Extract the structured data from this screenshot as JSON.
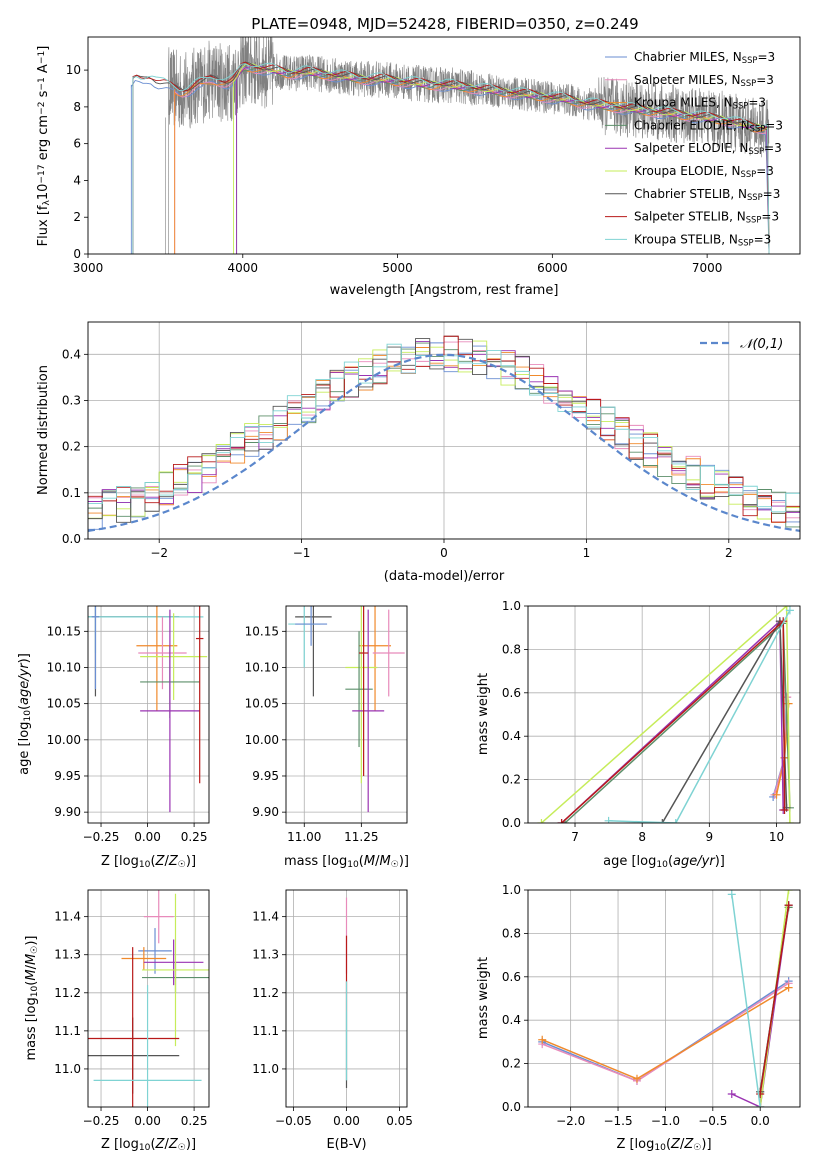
{
  "colors": {
    "series": [
      "#6a8ed2",
      "#e88bbb",
      "#f08a2c",
      "#5c8f6a",
      "#9a33b2",
      "#c6ec5a",
      "#555555",
      "#b81a1a",
      "#7fd3d3"
    ],
    "normal": "#5b87cc",
    "grid": "#b0b0b0",
    "spectrum": "#808080"
  },
  "series_names": [
    "Chabrier MILES, N_SSP=3",
    "Salpeter MILES, N_SSP=3",
    "Kroupa MILES, N_SSP=3",
    "Chabrier ELODIE, N_SSP=3",
    "Salpeter ELODIE, N_SSP=3",
    "Kroupa ELODIE, N_SSP=3",
    "Chabrier STELIB, N_SSP=3",
    "Salpeter STELIB, N_SSP=3",
    "Kroupa STELIB, N_SSP=3"
  ],
  "legend_rich": [
    {
      "pre": "Chabrier MILES, N",
      "sub": "SSP",
      "post": "=3"
    },
    {
      "pre": "Salpeter MILES, N",
      "sub": "SSP",
      "post": "=3"
    },
    {
      "pre": "Kroupa MILES, N",
      "sub": "SSP",
      "post": "=3"
    },
    {
      "pre": "Chabrier ELODIE, N",
      "sub": "SSP",
      "post": "=3"
    },
    {
      "pre": "Salpeter ELODIE, N",
      "sub": "SSP",
      "post": "=3"
    },
    {
      "pre": "Kroupa ELODIE, N",
      "sub": "SSP",
      "post": "=3"
    },
    {
      "pre": "Chabrier STELIB, N",
      "sub": "SSP",
      "post": "=3"
    },
    {
      "pre": "Salpeter STELIB, N",
      "sub": "SSP",
      "post": "=3"
    },
    {
      "pre": "Kroupa STELIB, N",
      "sub": "SSP",
      "post": "=3"
    }
  ],
  "chart_data": [
    {
      "id": "spectrum",
      "type": "line",
      "title": "PLATE=0948, MJD=52428, FIBERID=0350, z=0.249",
      "xlabel": "wavelength [Angstrom, rest frame]",
      "ylabel": "Flux [f_λ 10^-17 erg cm^-2 s^-1 A^-1]",
      "xlim": [
        3000,
        7600
      ],
      "ylim": [
        0,
        11.8
      ],
      "xticks": [
        3000,
        4000,
        5000,
        6000,
        7000
      ],
      "yticks": [
        0,
        2,
        4,
        6,
        8,
        10
      ],
      "data_range": [
        3500,
        7400
      ],
      "model_starts": [
        3280,
        3560,
        3560,
        3960,
        3960,
        3940,
        3290,
        3290,
        3290
      ],
      "model_points": {
        "x": [
          3280,
          3300,
          3350,
          3400,
          3450,
          3500,
          3550,
          3600,
          3650,
          3700,
          3750,
          3800,
          3850,
          3900,
          3950,
          4000,
          4100,
          4200,
          4300,
          4400,
          4500,
          4600,
          4700,
          4800,
          4900,
          5000,
          5100,
          5200,
          5300,
          5400,
          5500,
          5600,
          5700,
          5800,
          5900,
          6000,
          6100,
          6200,
          6300,
          6400,
          6500,
          6600,
          6700,
          6800,
          6900,
          7000,
          7100,
          7200,
          7300,
          7400
        ],
        "y": [
          9.2,
          9.5,
          9.4,
          9.6,
          9.3,
          9.2,
          9.0,
          8.8,
          8.9,
          9.2,
          9.3,
          9.5,
          9.4,
          9.3,
          9.5,
          10.2,
          10.1,
          10.0,
          9.8,
          9.9,
          9.8,
          9.7,
          9.6,
          9.5,
          9.5,
          9.4,
          9.3,
          9.2,
          9.2,
          9.1,
          9.0,
          8.9,
          8.8,
          8.7,
          8.6,
          8.5,
          8.4,
          8.2,
          8.1,
          8.0,
          7.9,
          7.8,
          7.7,
          7.6,
          7.5,
          7.4,
          7.3,
          7.1,
          6.9,
          6.8
        ]
      },
      "legend": "upper right"
    },
    {
      "id": "residuals",
      "type": "line",
      "xlabel": "(data-model)/error",
      "ylabel": "Normed distribution",
      "xlim": [
        -2.5,
        2.5
      ],
      "ylim": [
        0,
        0.47
      ],
      "xticks": [
        -2,
        -1,
        0,
        1,
        2
      ],
      "yticks": [
        0.0,
        0.1,
        0.2,
        0.3,
        0.4
      ],
      "normal_label": "𝒩(0,1)",
      "legend": "upper right"
    },
    {
      "id": "age_vs_Z",
      "type": "scatter",
      "xlabel": "Z [log₁₀(Z/Z☉)]",
      "ylabel": "age  [log₁₀(age/yr)]",
      "xlim": [
        -0.32,
        0.33
      ],
      "ylim": [
        9.885,
        10.185
      ],
      "xticks": [
        -0.25,
        0.0,
        0.25
      ],
      "xtick_labels": [
        "−0.25",
        "0.00",
        "0.25"
      ],
      "yticks": [
        9.9,
        9.95,
        10.0,
        10.05,
        10.1,
        10.15
      ],
      "points": [
        {
          "x": -0.28,
          "y": 10.17,
          "xerr": 0.45,
          "yerr": 0.11,
          "c": 6
        },
        {
          "x": -0.28,
          "y": 10.17,
          "xerr": 0.58,
          "yerr": 0.05,
          "c": 8
        },
        {
          "x": 0.05,
          "y": 10.13,
          "xerr": 0.11,
          "yerr": 0.09,
          "c": 2
        },
        {
          "x": 0.08,
          "y": 10.12,
          "xerr": 0.13,
          "yerr": 0.05,
          "c": 1
        },
        {
          "x": 0.14,
          "y": 10.115,
          "xerr": 0.18,
          "yerr": 0.06,
          "c": 5
        },
        {
          "x": 0.12,
          "y": 10.08,
          "xerr": 0.16,
          "yerr": 0.05,
          "c": 3
        },
        {
          "x": 0.12,
          "y": 10.04,
          "xerr": 0.16,
          "yerr": 0.14,
          "c": 4
        },
        {
          "x": 0.28,
          "y": 10.14,
          "xerr": 0.02,
          "yerr": 0.2,
          "c": 7
        },
        {
          "x": -0.28,
          "y": 10.17,
          "xerr": 0.02,
          "yerr": 0.1,
          "c": 0
        }
      ]
    },
    {
      "id": "age_vs_mass",
      "type": "scatter",
      "xlabel": "mass [log₁₀(M/M☉)]",
      "ylabel": "",
      "xlim": [
        10.92,
        11.45
      ],
      "ylim": [
        9.885,
        10.185
      ],
      "xticks": [
        11.0,
        11.25
      ],
      "xtick_labels": [
        "11.00",
        "11.25"
      ],
      "yticks": [
        9.9,
        9.95,
        10.0,
        10.05,
        10.1,
        10.15
      ],
      "points": [
        {
          "x": 11.04,
          "y": 10.17,
          "xerr": 0.08,
          "yerr": 0.11,
          "c": 6
        },
        {
          "x": 11.0,
          "y": 10.16,
          "xerr": 0.07,
          "yerr": 0.06,
          "c": 8
        },
        {
          "x": 11.31,
          "y": 10.13,
          "xerr": 0.07,
          "yerr": 0.09,
          "c": 2
        },
        {
          "x": 11.37,
          "y": 10.12,
          "xerr": 0.07,
          "yerr": 0.06,
          "c": 1
        },
        {
          "x": 11.25,
          "y": 10.1,
          "xerr": 0.07,
          "yerr": 0.16,
          "c": 5
        },
        {
          "x": 11.24,
          "y": 10.07,
          "xerr": 0.06,
          "yerr": 0.08,
          "c": 3
        },
        {
          "x": 11.28,
          "y": 10.04,
          "xerr": 0.07,
          "yerr": 0.14,
          "c": 4
        },
        {
          "x": 11.26,
          "y": 10.12,
          "xerr": 0.02,
          "yerr": 0.17,
          "c": 7
        },
        {
          "x": 11.03,
          "y": 10.16,
          "xerr": 0.07,
          "yerr": 0.03,
          "c": 0
        }
      ]
    },
    {
      "id": "weight_vs_age",
      "type": "line",
      "xlabel": "age  [log₁₀(age/yr)]",
      "ylabel": "mass weight",
      "xlim": [
        6.3,
        10.35
      ],
      "ylim": [
        0,
        1.0
      ],
      "xticks": [
        7,
        8,
        9,
        10
      ],
      "yticks": [
        0.0,
        0.2,
        0.4,
        0.6,
        0.8,
        1.0
      ],
      "series": [
        {
          "c": 0,
          "x": [
            9.95,
            10.12,
            10.15
          ],
          "y": [
            0.12,
            0.3,
            0.58
          ]
        },
        {
          "c": 1,
          "x": [
            9.97,
            10.12,
            10.16
          ],
          "y": [
            0.13,
            0.3,
            0.58
          ]
        },
        {
          "c": 2,
          "x": [
            10.0,
            10.12,
            10.18
          ],
          "y": [
            0.13,
            0.3,
            0.55
          ]
        },
        {
          "c": 3,
          "x": [
            6.85,
            10.1,
            10.2
          ],
          "y": [
            0.0,
            0.92,
            0.07
          ]
        },
        {
          "c": 4,
          "x": [
            6.8,
            10.05,
            10.1
          ],
          "y": [
            0.0,
            0.93,
            0.06
          ]
        },
        {
          "c": 5,
          "x": [
            6.5,
            10.15,
            10.2
          ],
          "y": [
            0.0,
            1.0,
            0.0
          ]
        },
        {
          "c": 6,
          "x": [
            8.3,
            10.05,
            10.15
          ],
          "y": [
            0.0,
            0.93,
            0.07
          ]
        },
        {
          "c": 7,
          "x": [
            6.8,
            10.1,
            10.12
          ],
          "y": [
            0.0,
            0.93,
            0.06
          ]
        },
        {
          "c": 8,
          "x": [
            7.5,
            8.5,
            10.2
          ],
          "y": [
            0.01,
            0.0,
            0.98
          ]
        }
      ]
    },
    {
      "id": "mass_vs_Z",
      "type": "scatter",
      "xlabel": "Z [log₁₀(Z/Z☉)]",
      "ylabel": "mass [log₁₀(M/M☉)]",
      "xlim": [
        -0.32,
        0.33
      ],
      "ylim": [
        10.9,
        11.47
      ],
      "xticks": [
        -0.25,
        0.0,
        0.25
      ],
      "xtick_labels": [
        "−0.25",
        "0.00",
        "0.25"
      ],
      "yticks": [
        11.0,
        11.1,
        11.2,
        11.3,
        11.4
      ],
      "points": [
        {
          "x": 0.04,
          "y": 11.31,
          "xerr": 0.09,
          "yerr": 0.06,
          "c": 0
        },
        {
          "x": 0.06,
          "y": 11.4,
          "xerr": 0.08,
          "yerr": 0.07,
          "c": 1
        },
        {
          "x": -0.02,
          "y": 11.29,
          "xerr": 0.12,
          "yerr": 0.03,
          "c": 2
        },
        {
          "x": 0.15,
          "y": 11.24,
          "xerr": 0.18,
          "yerr": 0.04,
          "c": 3
        },
        {
          "x": 0.14,
          "y": 11.28,
          "xerr": 0.16,
          "yerr": 0.06,
          "c": 4
        },
        {
          "x": 0.15,
          "y": 11.26,
          "xerr": 0.18,
          "yerr": 0.2,
          "c": 5
        },
        {
          "x": -0.08,
          "y": 11.035,
          "xerr": 0.25,
          "yerr": 0.1,
          "c": 6
        },
        {
          "x": -0.08,
          "y": 11.08,
          "xerr": 0.25,
          "yerr": 0.24,
          "c": 7
        },
        {
          "x": 0.0,
          "y": 10.97,
          "xerr": 0.29,
          "yerr": 0.25,
          "c": 8
        }
      ]
    },
    {
      "id": "mass_vs_ebv",
      "type": "scatter",
      "xlabel": "E(B-V)",
      "ylabel": "",
      "xlim": [
        -0.057,
        0.057
      ],
      "ylim": [
        10.9,
        11.47
      ],
      "xticks": [
        -0.05,
        0.0,
        0.05
      ],
      "xtick_labels": [
        "−0.05",
        "0.00",
        "0.05"
      ],
      "yticks": [
        11.0,
        11.1,
        11.2,
        11.3,
        11.4
      ],
      "points": [
        {
          "x": 0.0,
          "y": 11.35,
          "xerr": 0.0,
          "yerr": 0.1,
          "c": 1
        },
        {
          "x": 0.0,
          "y": 11.25,
          "xerr": 0.0,
          "yerr": 0.1,
          "c": 7
        },
        {
          "x": 0.0,
          "y": 11.05,
          "xerr": 0.0,
          "yerr": 0.1,
          "c": 6
        },
        {
          "x": 0.0,
          "y": 11.1,
          "xerr": 0.0,
          "yerr": 0.13,
          "c": 8
        }
      ]
    },
    {
      "id": "weight_vs_Z",
      "type": "line",
      "xlabel": "Z [log₁₀(Z/Z☉)]",
      "ylabel": "mass weight",
      "xlim": [
        -2.45,
        0.42
      ],
      "ylim": [
        0,
        1.0
      ],
      "xticks": [
        -2.0,
        -1.5,
        -1.0,
        -0.5,
        0.0
      ],
      "xtick_labels": [
        "−2.0",
        "−1.5",
        "−1.0",
        "−0.5",
        "0.0"
      ],
      "yticks": [
        0.0,
        0.2,
        0.4,
        0.6,
        0.8,
        1.0
      ],
      "series": [
        {
          "c": 0,
          "x": [
            -2.3,
            -1.3,
            0.3
          ],
          "y": [
            0.3,
            0.12,
            0.58
          ]
        },
        {
          "c": 1,
          "x": [
            -2.3,
            -1.3,
            0.3
          ],
          "y": [
            0.29,
            0.12,
            0.57
          ]
        },
        {
          "c": 2,
          "x": [
            -2.3,
            -1.3,
            0.3
          ],
          "y": [
            0.31,
            0.13,
            0.55
          ]
        },
        {
          "c": 3,
          "x": [
            0.0,
            0.3
          ],
          "y": [
            0.07,
            0.92
          ]
        },
        {
          "c": 4,
          "x": [
            -0.3,
            0.0,
            0.3
          ],
          "y": [
            0.06,
            0.0,
            0.93
          ]
        },
        {
          "c": 5,
          "x": [
            0.0,
            0.3
          ],
          "y": [
            0.0,
            1.0
          ]
        },
        {
          "c": 6,
          "x": [
            0.0,
            0.3
          ],
          "y": [
            0.07,
            0.93
          ]
        },
        {
          "c": 7,
          "x": [
            0.0,
            0.3
          ],
          "y": [
            0.06,
            0.93
          ]
        },
        {
          "c": 8,
          "x": [
            -0.3,
            0.0
          ],
          "y": [
            0.98,
            0.0
          ]
        }
      ]
    }
  ]
}
